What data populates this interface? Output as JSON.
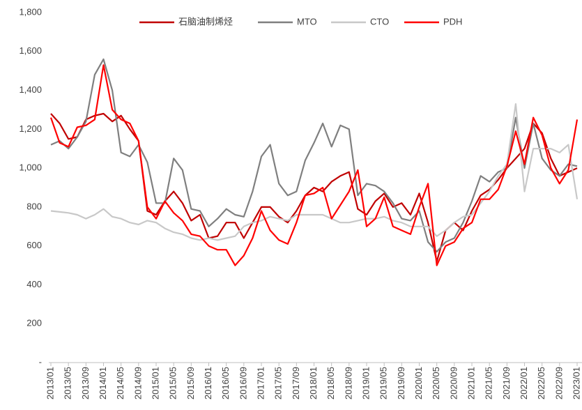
{
  "chart_data": {
    "type": "line",
    "categories": [
      "2013/01",
      null,
      "2013/05",
      null,
      "2013/09",
      null,
      "2014/01",
      null,
      "2014/05",
      null,
      "2014/09",
      null,
      "2015/01",
      null,
      "2015/05",
      null,
      "2015/09",
      null,
      "2016/01",
      null,
      "2016/05",
      null,
      "2016/09",
      null,
      "2017/01",
      null,
      "2017/05",
      null,
      "2017/09",
      null,
      "2018/01",
      null,
      "2018/05",
      null,
      "2018/09",
      null,
      "2019/01",
      null,
      "2019/05",
      null,
      "2019/09",
      null,
      "2020/01",
      null,
      "2020/05",
      null,
      "2020/09",
      null,
      "2021/01",
      null,
      "2021/05",
      null,
      "2021/09",
      null,
      "2022/01",
      null,
      "2022/05",
      null,
      "2022/09",
      null,
      "2023/01"
    ],
    "series": [
      {
        "name": "石脑油制烯烃",
        "color": "#c00000",
        "values": [
          1280,
          1230,
          1150,
          1160,
          1250,
          1270,
          1280,
          1240,
          1270,
          1200,
          1140,
          780,
          760,
          830,
          880,
          820,
          730,
          760,
          640,
          650,
          720,
          720,
          640,
          720,
          800,
          800,
          750,
          720,
          780,
          860,
          900,
          880,
          930,
          960,
          980,
          790,
          760,
          830,
          870,
          800,
          820,
          760,
          870,
          720,
          520,
          680,
          720,
          680,
          780,
          860,
          890,
          940,
          1000,
          1050,
          1100,
          1230,
          1180,
          1050,
          960,
          980,
          1000
        ]
      },
      {
        "name": "MTO",
        "color": "#7f7f7f",
        "values": [
          1120,
          1140,
          1100,
          1160,
          1240,
          1480,
          1560,
          1400,
          1080,
          1060,
          1120,
          1030,
          820,
          820,
          1050,
          990,
          790,
          780,
          700,
          740,
          790,
          760,
          750,
          880,
          1060,
          1120,
          920,
          860,
          880,
          1040,
          1130,
          1230,
          1110,
          1220,
          1200,
          860,
          920,
          910,
          880,
          820,
          740,
          730,
          780,
          620,
          570,
          620,
          640,
          720,
          830,
          960,
          930,
          980,
          1000,
          1260,
          1000,
          1230,
          1050,
          990,
          960,
          1020,
          1010
        ]
      },
      {
        "name": "CTO",
        "color": "#c8c8c8",
        "values": [
          780,
          775,
          770,
          760,
          740,
          760,
          790,
          750,
          740,
          720,
          710,
          730,
          720,
          690,
          670,
          660,
          640,
          630,
          640,
          630,
          640,
          650,
          700,
          720,
          730,
          750,
          740,
          730,
          760,
          760,
          760,
          760,
          740,
          720,
          720,
          730,
          740,
          740,
          750,
          730,
          720,
          700,
          700,
          700,
          650,
          680,
          720,
          750,
          760,
          820,
          880,
          960,
          1020,
          1330,
          880,
          1100,
          1100,
          1100,
          1080,
          1120,
          840
        ]
      },
      {
        "name": "PDH",
        "color": "#ff0000",
        "values": [
          1260,
          1130,
          1110,
          1210,
          1220,
          1250,
          1530,
          1300,
          1250,
          1230,
          1140,
          800,
          740,
          830,
          770,
          730,
          660,
          650,
          600,
          580,
          580,
          500,
          550,
          640,
          780,
          680,
          630,
          610,
          720,
          860,
          870,
          900,
          740,
          810,
          880,
          990,
          700,
          740,
          850,
          700,
          680,
          660,
          800,
          920,
          500,
          600,
          620,
          690,
          720,
          840,
          840,
          890,
          1010,
          1190,
          1020,
          1260,
          1170,
          1000,
          920,
          990,
          1250
        ]
      }
    ],
    "ylim": [
      0,
      1800
    ],
    "yticks": [
      {
        "value": 0,
        "label": "-"
      },
      200,
      400,
      600,
      800,
      {
        "value": 1000,
        "label": "1,000"
      },
      {
        "value": 1200,
        "label": "1,200"
      },
      {
        "value": 1400,
        "label": "1,400"
      },
      {
        "value": 1600,
        "label": "1,600"
      },
      {
        "value": 1800,
        "label": "1,800"
      }
    ],
    "legend": "top"
  }
}
